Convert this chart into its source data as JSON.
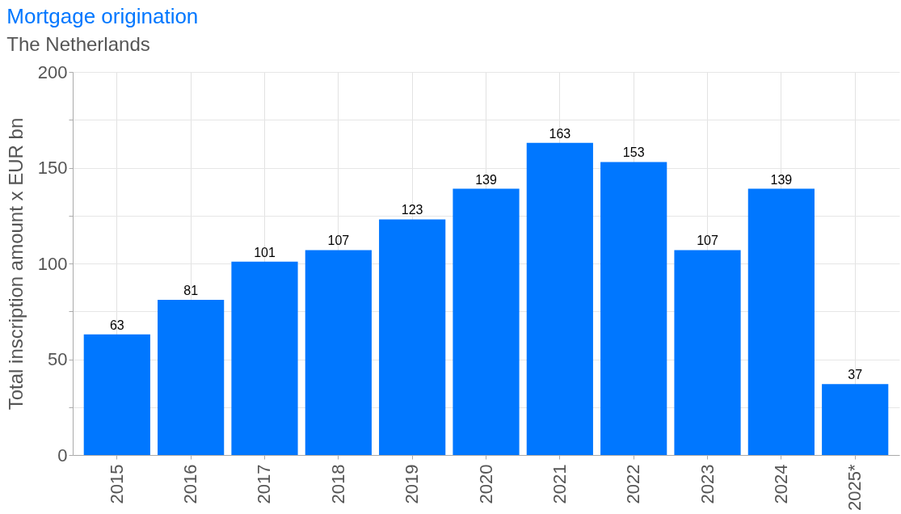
{
  "chart_data": {
    "type": "bar",
    "title": "Mortgage origination",
    "subtitle": "The Netherlands",
    "ylabel": "Total inscription amount x EUR bn",
    "categories": [
      "2015",
      "2016",
      "2017",
      "2018",
      "2019",
      "2020",
      "2021",
      "2022",
      "2023",
      "2024",
      "2025*"
    ],
    "values": [
      63,
      81,
      101,
      107,
      123,
      139,
      163,
      153,
      107,
      139,
      37
    ],
    "color": "#0077ff",
    "ylim": [
      0,
      200
    ],
    "yticks": [
      0,
      {
        "value": 25,
        "label": null
      },
      50,
      {
        "value": 75,
        "label": null
      },
      100,
      {
        "value": 125,
        "label": null
      },
      150,
      {
        "value": 175,
        "label": null
      },
      200
    ],
    "grid": true,
    "data_labels": true
  }
}
